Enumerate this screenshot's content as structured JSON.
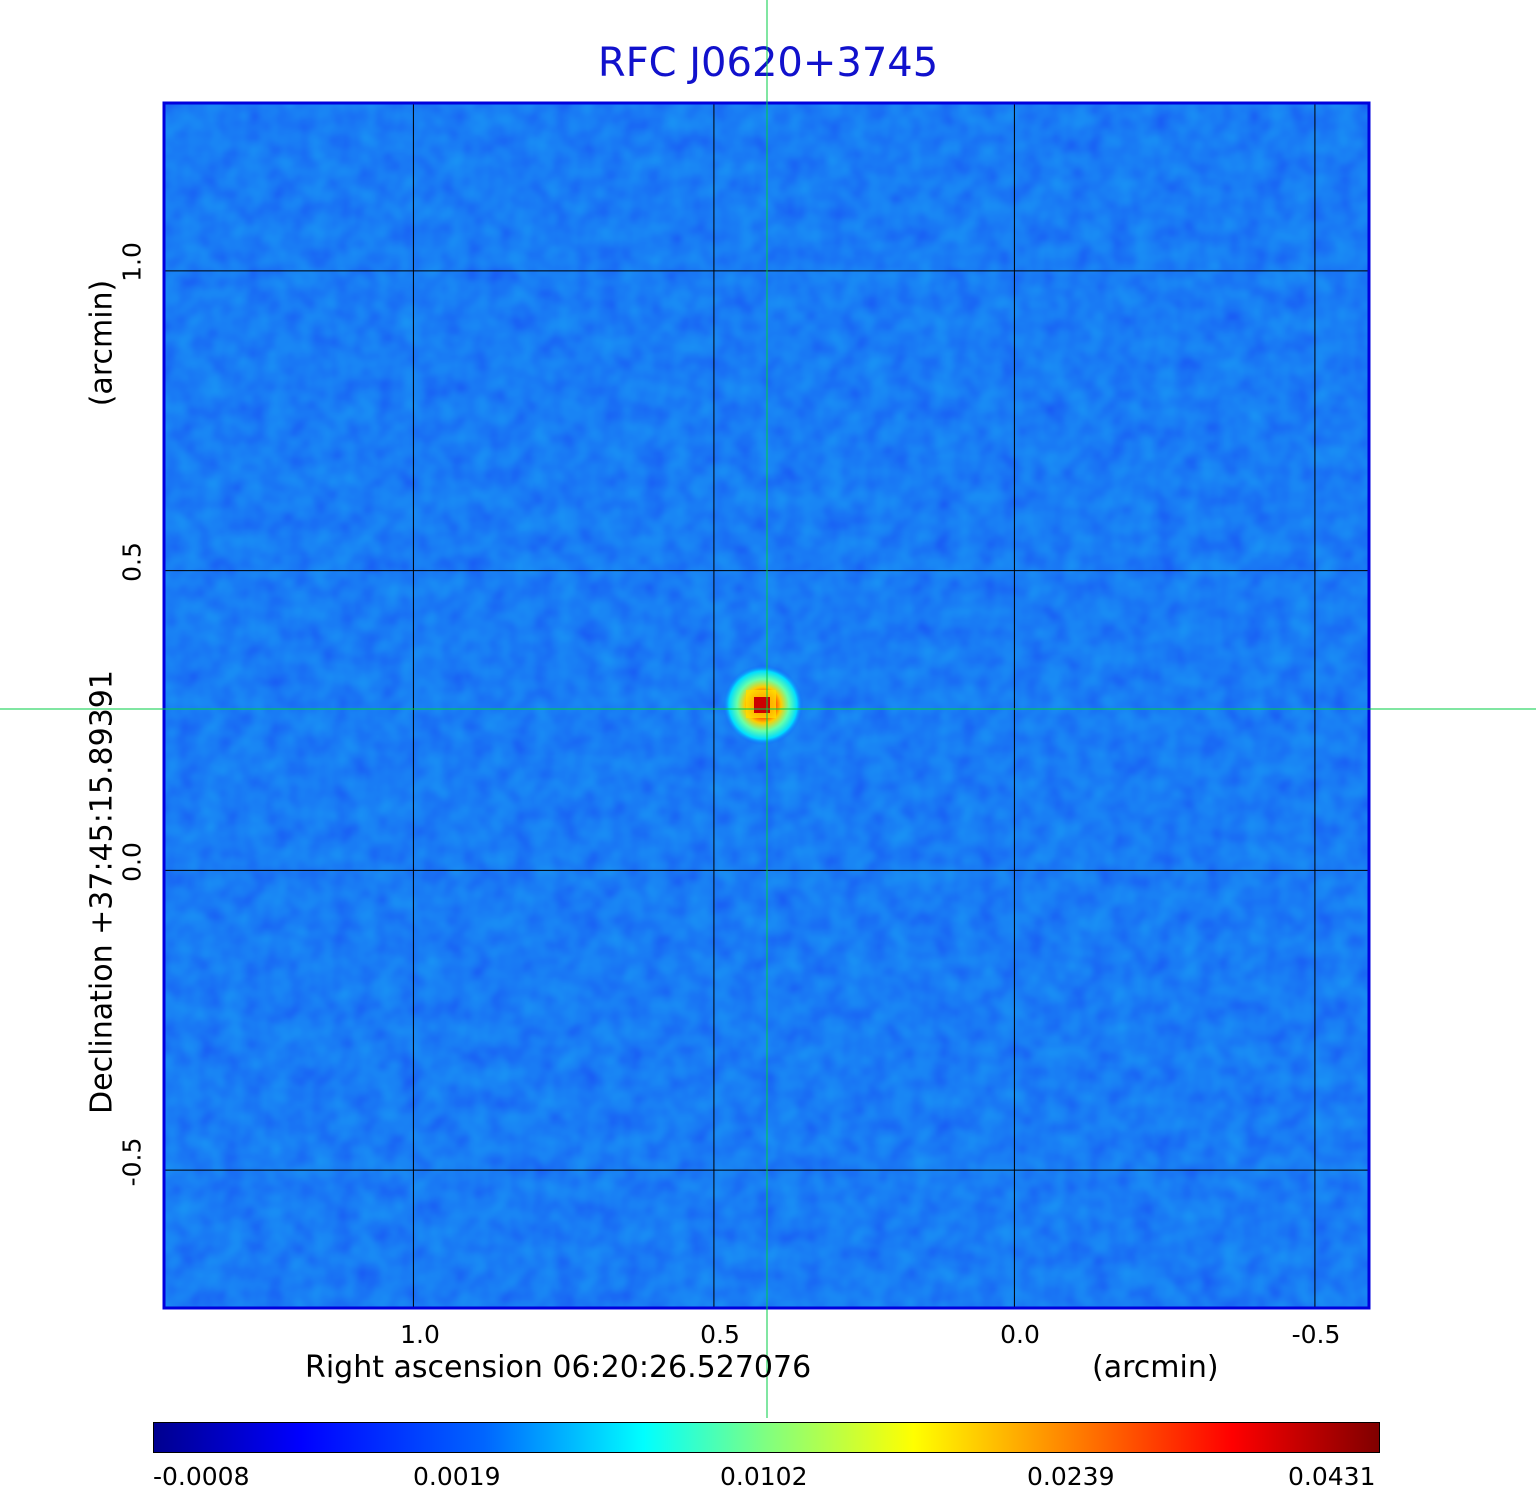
{
  "title": "RFC J0620+3745",
  "x_axis": {
    "label": "Right ascension  06:20:26.527076",
    "unit": "(arcmin)",
    "ticks": [
      {
        "value": 1.0,
        "label": "1.0"
      },
      {
        "value": 0.5,
        "label": "0.5"
      },
      {
        "value": 0.0,
        "label": "0.0"
      },
      {
        "value": -0.5,
        "label": "-0.5"
      }
    ],
    "range": [
      1.415,
      -0.59
    ]
  },
  "y_axis": {
    "label": "Declination  +37:45:15.89391",
    "unit": "(arcmin)",
    "ticks": [
      {
        "value": 1.0,
        "label": "1.0"
      },
      {
        "value": 0.5,
        "label": "0.5"
      },
      {
        "value": 0.0,
        "label": "0.0"
      },
      {
        "value": -0.5,
        "label": "-0.5"
      }
    ],
    "range": [
      -0.73,
      1.28
    ]
  },
  "source_position": {
    "ra_offset_arcmin": 0.41,
    "dec_offset_arcmin": 0.27
  },
  "colorbar": {
    "colormap": "jet",
    "labels": [
      "-0.0008",
      "0.0019",
      "0.0102",
      "0.0239",
      "0.0431"
    ]
  },
  "colors": {
    "title": "#1111cc",
    "frame": "#0000dd",
    "crosshair": "#00cc44",
    "grid": "#000000",
    "background_map": "#0a47f0"
  }
}
